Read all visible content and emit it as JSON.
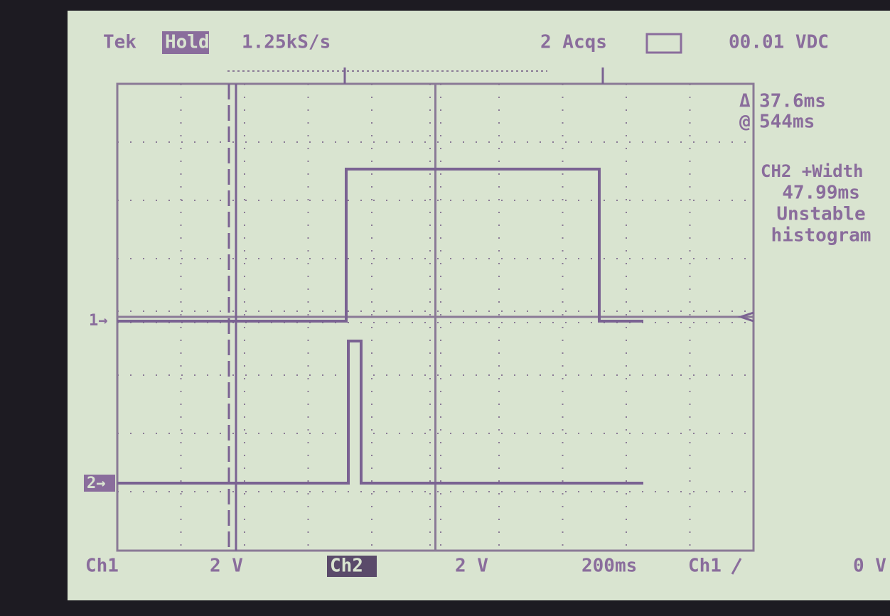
{
  "header": {
    "brand": "Tek",
    "mode": "Hold",
    "sample_rate": "1.25kS/s",
    "acquisitions": "2 Acqs",
    "readout": "00.01 VDC"
  },
  "cursors": {
    "delta": "37.6ms",
    "position": "544ms"
  },
  "measurement": {
    "label": "CH2 +Width",
    "value": "47.99ms",
    "status": "Unstable",
    "mode": "histogram"
  },
  "markers": {
    "ch1": "1→",
    "ch2": "2→"
  },
  "footer": {
    "ch1_label": "Ch1",
    "ch1_scale": "2 V",
    "ch2_label": "Ch2",
    "ch2_scale": "2 V",
    "timebase": "200ms",
    "trigger_source": "Ch1",
    "trigger_level": "0 V"
  }
}
